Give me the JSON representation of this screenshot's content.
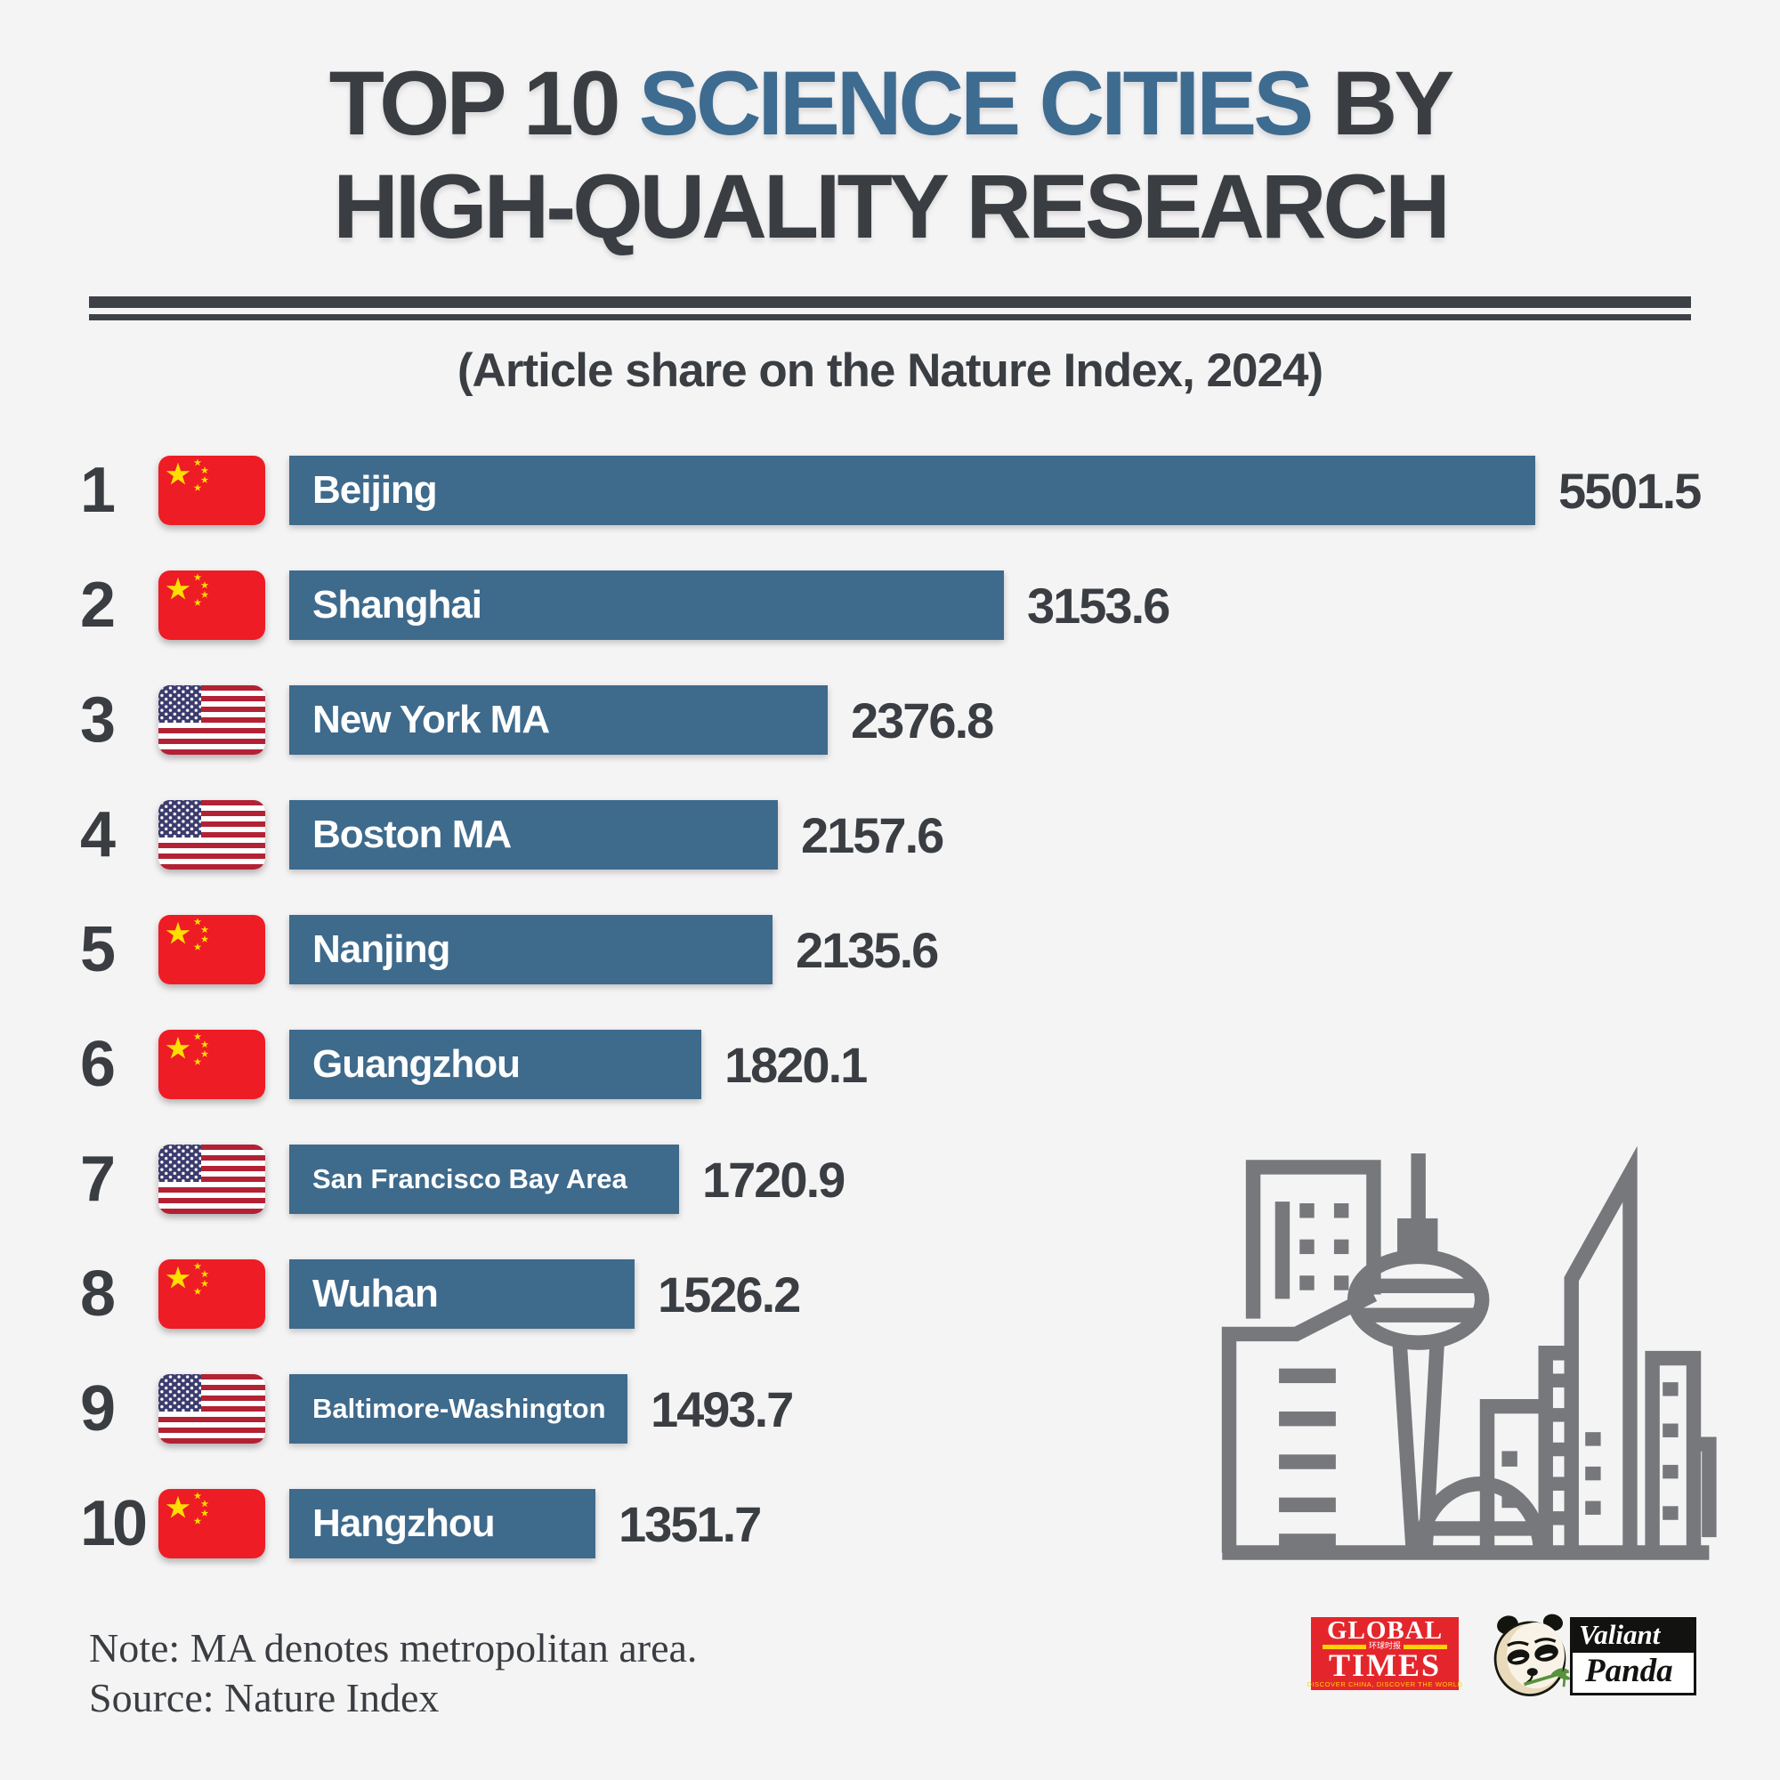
{
  "title": {
    "line1_prefix": "TOP 10 ",
    "line1_highlight": "SCIENCE CITIES",
    "line1_suffix": " BY",
    "line2": "HIGH-QUALITY RESEARCH"
  },
  "subtitle": "(Article share on the Nature Index, 2024)",
  "chart_data": {
    "type": "bar",
    "orientation": "horizontal",
    "title": "TOP 10 SCIENCE CITIES BY HIGH-QUALITY RESEARCH",
    "subtitle": "(Article share on the Nature Index, 2024)",
    "value_label": "Article share on the Nature Index, 2024",
    "xlim": [
      0,
      5501.5
    ],
    "rows": [
      {
        "rank": 1,
        "city": "Beijing",
        "country": "cn",
        "value": 5501.5
      },
      {
        "rank": 2,
        "city": "Shanghai",
        "country": "cn",
        "value": 3153.6
      },
      {
        "rank": 3,
        "city": "New York MA",
        "country": "us",
        "value": 2376.8
      },
      {
        "rank": 4,
        "city": "Boston MA",
        "country": "us",
        "value": 2157.6
      },
      {
        "rank": 5,
        "city": "Nanjing",
        "country": "cn",
        "value": 2135.6
      },
      {
        "rank": 6,
        "city": "Guangzhou",
        "country": "cn",
        "value": 1820.1
      },
      {
        "rank": 7,
        "city": "San Francisco Bay Area",
        "country": "us",
        "value": 1720.9
      },
      {
        "rank": 8,
        "city": "Wuhan",
        "country": "cn",
        "value": 1526.2
      },
      {
        "rank": 9,
        "city": "Baltimore-Washington",
        "country": "us",
        "value": 1493.7
      },
      {
        "rank": 10,
        "city": "Hangzhou",
        "country": "cn",
        "value": 1351.7
      }
    ]
  },
  "footer": {
    "note": "Note: MA denotes metropolitan area.",
    "source": "Source: Nature Index"
  },
  "logos": {
    "global_times": {
      "line1": "GLOBAL",
      "line2": "TIMES",
      "band": "环球时报",
      "tagline": "DISCOVER CHINA, DISCOVER THE WORLD"
    },
    "valiant_panda": {
      "line1": "Valiant",
      "line2": "Panda"
    }
  },
  "colors": {
    "background": "#f5f4f5",
    "text_dark": "#3a3e42",
    "accent_blue": "#3e6b90",
    "bar_blue": "#3e6a8c",
    "skyline_gray": "#76787b",
    "flag_red": "#ee1c25",
    "us_red": "#b22234",
    "us_blue": "#3c3b6e",
    "star_yellow": "#ffde00",
    "gt_red": "#e4262c",
    "gt_yellow": "#ffd400"
  }
}
